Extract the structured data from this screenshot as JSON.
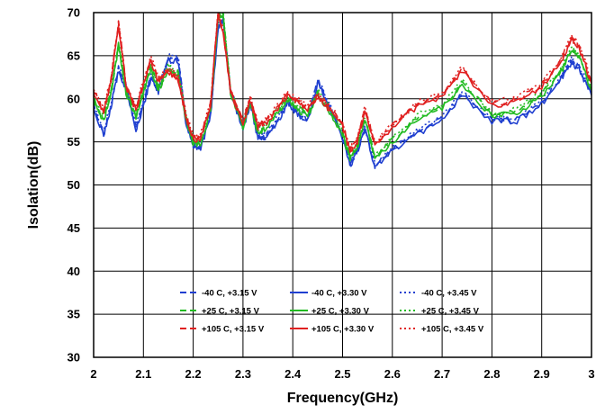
{
  "chart_data": {
    "type": "line",
    "title": "",
    "xlabel": "Frequency(GHz)",
    "ylabel": "Isolation(dB)",
    "xlim": [
      2,
      3
    ],
    "ylim": [
      30,
      70
    ],
    "x_ticks": [
      "2",
      "2.1",
      "2.2",
      "2.3",
      "2.4",
      "2.5",
      "2.6",
      "2.7",
      "2.8",
      "2.9",
      "3"
    ],
    "y_ticks": [
      "30",
      "35",
      "40",
      "45",
      "50",
      "55",
      "60",
      "65",
      "70"
    ],
    "grid": true,
    "legend_position": "lower-center",
    "x": [
      2.0,
      2.02,
      2.035,
      2.05,
      2.065,
      2.085,
      2.1,
      2.115,
      2.13,
      2.15,
      2.17,
      2.185,
      2.2,
      2.215,
      2.235,
      2.25,
      2.26,
      2.275,
      2.3,
      2.315,
      2.33,
      2.345,
      2.37,
      2.39,
      2.41,
      2.43,
      2.45,
      2.47,
      2.5,
      2.515,
      2.53,
      2.545,
      2.565,
      2.6,
      2.65,
      2.7,
      2.74,
      2.8,
      2.85,
      2.9,
      2.94,
      2.96,
      2.975,
      3.0
    ],
    "series": [
      {
        "name": "-40 C, +3.15 V",
        "color": "#1f3fd0",
        "dash": "dashed",
        "values": [
          59.3,
          55.9,
          59.3,
          63.5,
          61.3,
          56.6,
          59.4,
          62.6,
          61.0,
          64.7,
          64.6,
          57.6,
          54.5,
          54.4,
          58.2,
          68.3,
          69.3,
          60.9,
          56.7,
          59.6,
          55.6,
          55.6,
          57.6,
          59.6,
          58.4,
          57.6,
          62.1,
          59.6,
          55.6,
          52.4,
          54.1,
          56.6,
          52.2,
          54.2,
          56.1,
          57.6,
          60.6,
          57.6,
          57.6,
          59.6,
          62.6,
          64.4,
          63.6,
          60.6
        ]
      },
      {
        "name": "-40 C, +3.30 V",
        "color": "#1f3fd0",
        "dash": "solid",
        "values": [
          59.1,
          55.7,
          59.1,
          63.3,
          61.1,
          56.4,
          59.2,
          62.4,
          60.8,
          64.5,
          64.4,
          57.4,
          54.3,
          54.2,
          58.0,
          68.1,
          69.1,
          60.7,
          56.5,
          59.4,
          55.4,
          55.4,
          57.4,
          59.4,
          58.2,
          57.4,
          61.9,
          59.4,
          55.4,
          52.2,
          53.9,
          56.4,
          52.0,
          54.0,
          55.9,
          57.4,
          60.4,
          57.4,
          57.4,
          59.4,
          62.4,
          64.2,
          63.4,
          60.4
        ]
      },
      {
        "name": "-40 C, +3.45 V",
        "color": "#1f3fd0",
        "dash": "dotted",
        "values": [
          59.5,
          56.1,
          59.5,
          63.7,
          61.5,
          56.8,
          59.6,
          62.8,
          61.2,
          64.9,
          64.8,
          57.8,
          54.7,
          54.6,
          58.4,
          68.5,
          69.5,
          61.1,
          56.9,
          59.8,
          55.8,
          55.8,
          57.8,
          59.8,
          58.6,
          57.8,
          62.3,
          59.8,
          55.8,
          52.6,
          54.3,
          56.8,
          52.4,
          54.4,
          56.3,
          57.8,
          60.8,
          57.8,
          57.8,
          59.8,
          62.8,
          64.6,
          63.8,
          60.8
        ]
      },
      {
        "name": "+25 C, +3.15 V",
        "color": "#22bb22",
        "dash": "dashed",
        "values": [
          59.9,
          57.7,
          60.7,
          66.4,
          60.9,
          58.1,
          60.9,
          63.7,
          61.2,
          63.6,
          62.9,
          57.9,
          55.0,
          55.0,
          58.9,
          69.7,
          69.9,
          60.9,
          56.8,
          59.6,
          56.2,
          56.7,
          58.6,
          60.0,
          58.9,
          58.2,
          60.7,
          59.0,
          56.1,
          53.2,
          54.6,
          57.8,
          53.1,
          55.2,
          57.9,
          59.1,
          61.8,
          58.2,
          58.5,
          60.5,
          63.4,
          65.7,
          65.0,
          61.2
        ]
      },
      {
        "name": "+25 C, +3.30 V",
        "color": "#22bb22",
        "dash": "solid",
        "values": [
          59.7,
          57.5,
          60.5,
          66.2,
          60.7,
          57.9,
          60.7,
          63.5,
          61.0,
          63.4,
          62.7,
          57.7,
          54.8,
          54.8,
          58.7,
          69.5,
          69.7,
          60.7,
          56.6,
          59.4,
          56.0,
          56.5,
          58.4,
          59.8,
          58.7,
          58.0,
          60.5,
          58.8,
          55.9,
          53.0,
          54.4,
          57.6,
          52.9,
          55.0,
          57.7,
          58.9,
          61.6,
          58.0,
          58.3,
          60.3,
          63.2,
          65.5,
          64.8,
          61.0
        ]
      },
      {
        "name": "+25 C, +3.45 V",
        "color": "#22bb22",
        "dash": "dotted",
        "values": [
          60.1,
          57.9,
          60.9,
          66.6,
          61.1,
          58.3,
          61.1,
          63.9,
          61.4,
          63.8,
          63.1,
          58.1,
          55.2,
          55.2,
          59.1,
          69.9,
          70.0,
          61.1,
          57.0,
          59.8,
          56.4,
          56.9,
          58.8,
          60.2,
          59.1,
          58.4,
          60.9,
          59.2,
          56.3,
          53.4,
          54.8,
          58.0,
          53.3,
          55.4,
          58.1,
          59.3,
          62.0,
          58.4,
          58.7,
          60.7,
          63.6,
          65.9,
          65.2,
          61.4
        ]
      },
      {
        "name": "+105 C, +3.15 V",
        "color": "#e02020",
        "dash": "dashed",
        "values": [
          61.0,
          58.7,
          62.2,
          68.8,
          61.6,
          58.9,
          61.9,
          64.7,
          62.2,
          63.3,
          62.4,
          58.2,
          55.4,
          55.6,
          59.6,
          70.0,
          67.9,
          61.1,
          57.3,
          60.1,
          56.9,
          57.3,
          59.1,
          60.5,
          59.8,
          58.9,
          60.3,
          59.2,
          57.0,
          54.0,
          55.3,
          58.9,
          54.7,
          56.8,
          59.3,
          60.5,
          63.4,
          59.4,
          59.8,
          61.6,
          64.6,
          67.2,
          66.2,
          62.0
        ]
      },
      {
        "name": "+105 C, +3.30 V",
        "color": "#e02020",
        "dash": "solid",
        "values": [
          60.8,
          58.5,
          62.0,
          68.6,
          61.4,
          58.7,
          61.7,
          64.5,
          62.0,
          63.1,
          62.2,
          58.0,
          55.2,
          55.4,
          59.4,
          69.8,
          67.7,
          60.9,
          57.1,
          59.9,
          56.7,
          57.1,
          58.9,
          60.3,
          59.6,
          58.7,
          60.1,
          59.0,
          56.8,
          53.8,
          55.1,
          58.7,
          54.5,
          56.6,
          59.1,
          60.3,
          63.2,
          59.2,
          59.6,
          61.4,
          64.4,
          67.0,
          66.0,
          61.8
        ]
      },
      {
        "name": "+105 C, +3.45 V",
        "color": "#e02020",
        "dash": "dotted",
        "values": [
          61.2,
          58.9,
          62.4,
          69.0,
          61.8,
          59.1,
          62.1,
          64.9,
          62.4,
          63.5,
          62.6,
          58.4,
          55.6,
          55.8,
          59.8,
          70.0,
          68.1,
          61.3,
          57.5,
          60.3,
          57.1,
          57.5,
          59.3,
          60.7,
          60.0,
          59.1,
          60.5,
          59.4,
          57.2,
          54.2,
          55.5,
          59.1,
          54.9,
          57.0,
          59.5,
          60.7,
          63.6,
          59.6,
          60.0,
          61.8,
          64.8,
          67.4,
          66.4,
          62.2
        ]
      }
    ]
  }
}
